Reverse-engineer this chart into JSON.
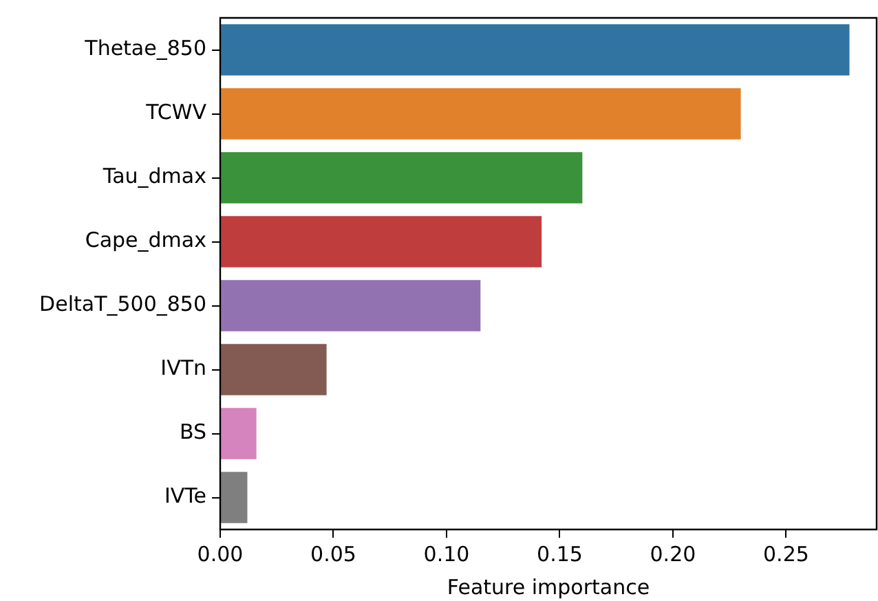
{
  "chart_data": {
    "type": "bar",
    "orientation": "horizontal",
    "xlabel": "Feature importance",
    "categories": [
      "Thetae_850",
      "TCWV",
      "Tau_dmax",
      "Cape_dmax",
      "DeltaT_500_850",
      "IVTn",
      "BS",
      "IVTe"
    ],
    "values": [
      0.278,
      0.23,
      0.16,
      0.142,
      0.115,
      0.047,
      0.016,
      0.012
    ],
    "colors": [
      "#3274a1",
      "#e1812c",
      "#3a923a",
      "#c03d3e",
      "#9372b2",
      "#845b53",
      "#d684bd",
      "#7f7f7f"
    ],
    "xlim": [
      0,
      0.29
    ],
    "xticks": [
      {
        "value": 0,
        "label": "0.00"
      },
      {
        "value": 0.05,
        "label": "0.05"
      },
      {
        "value": 0.1,
        "label": "0.10"
      },
      {
        "value": 0.15,
        "label": "0.15"
      },
      {
        "value": 0.2,
        "label": "0.20"
      },
      {
        "value": 0.25,
        "label": "0.25"
      }
    ],
    "grid": false,
    "legend": false
  }
}
